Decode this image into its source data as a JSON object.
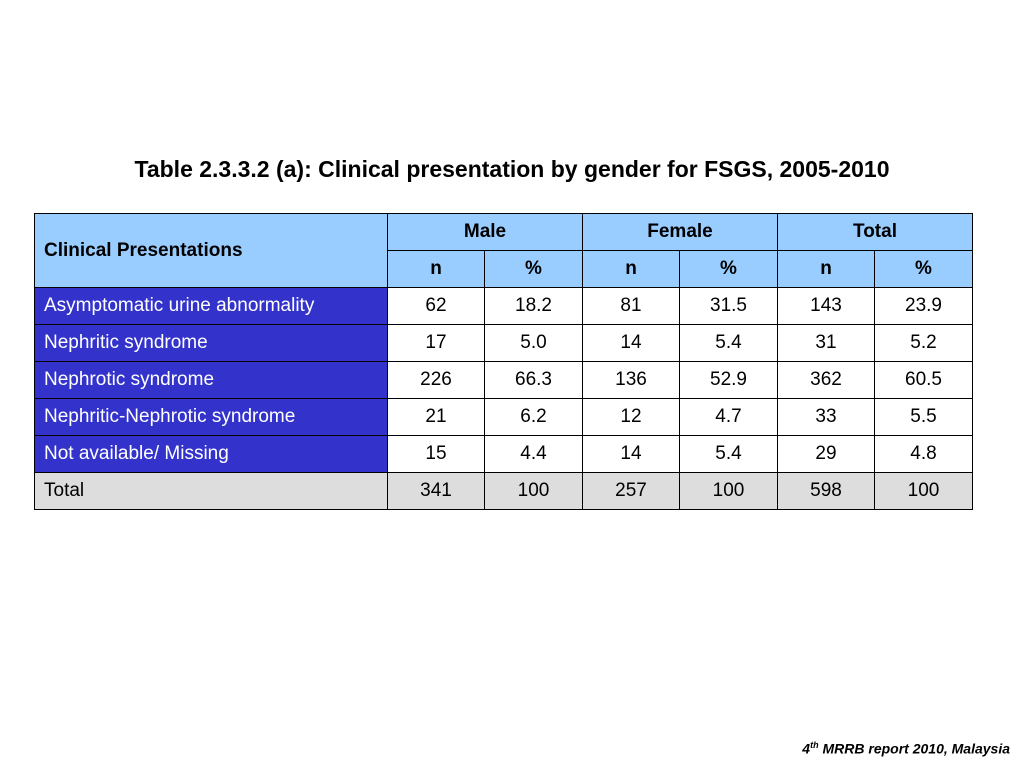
{
  "title": "Table 2.3.3.2 (a): Clinical presentation by gender for FSGS, 2005-2010",
  "table": {
    "label_header": "Clinical Presentations",
    "groups": [
      "Male",
      "Female",
      "Total"
    ],
    "subheaders": [
      "n",
      "%",
      "n",
      "%",
      "n",
      "%"
    ],
    "rows": [
      {
        "label": "Asymptomatic urine abnormality",
        "values": [
          "62",
          "18.2",
          "81",
          "31.5",
          "143",
          "23.9"
        ]
      },
      {
        "label": "Nephritic syndrome",
        "values": [
          "17",
          "5.0",
          "14",
          "5.4",
          "31",
          "5.2"
        ]
      },
      {
        "label": "Nephrotic syndrome",
        "values": [
          "226",
          "66.3",
          "136",
          "52.9",
          "362",
          "60.5"
        ]
      },
      {
        "label": "Nephritic-Nephrotic syndrome",
        "values": [
          "21",
          "6.2",
          "12",
          "4.7",
          "33",
          "5.5"
        ]
      },
      {
        "label": "Not available/ Missing",
        "values": [
          "15",
          "4.4",
          "14",
          "5.4",
          "29",
          "4.8"
        ]
      }
    ],
    "total": {
      "label": "Total",
      "values": [
        "341",
        "100",
        "257",
        "100",
        "598",
        "100"
      ]
    }
  },
  "footer": {
    "prefix": "4",
    "superscript": "th",
    "text": " MRRB report 2010, Malaysia"
  },
  "colors": {
    "header_bg": "#99ccff",
    "row_label_bg": "#3333cc",
    "total_bg": "#dddddd"
  }
}
